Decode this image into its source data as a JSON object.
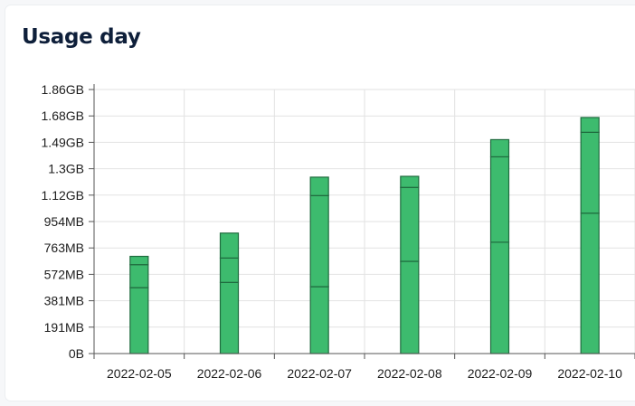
{
  "card": {
    "title": "Usage day"
  },
  "chart_data": {
    "type": "bar",
    "stacked": true,
    "categories": [
      "2022-02-05",
      "2022-02-06",
      "2022-02-07",
      "2022-02-08",
      "2022-02-09",
      "2022-02-10"
    ],
    "y_tick_labels": [
      "0B",
      "191MB",
      "381MB",
      "572MB",
      "763MB",
      "954MB",
      "1.12GB",
      "1.3GB",
      "1.49GB",
      "1.68GB",
      "1.86GB"
    ],
    "y_unit": "MB",
    "ylim": [
      0,
      1907
    ],
    "grid": true,
    "legend": "none",
    "series": [
      {
        "values": [
          476,
          514,
          483,
          666,
          804,
          1014
        ]
      },
      {
        "values": [
          166,
          176,
          658,
          534,
          617,
          584
        ]
      },
      {
        "values": [
          60,
          180,
          133,
          80,
          124,
          107
        ]
      }
    ],
    "totals": [
      702,
      870,
      1274,
      1280,
      1545,
      1705
    ],
    "bar_color": "#3dbb6e",
    "bar_border_color": "#1f6b3e",
    "grid_color": "#e2e2e2"
  }
}
